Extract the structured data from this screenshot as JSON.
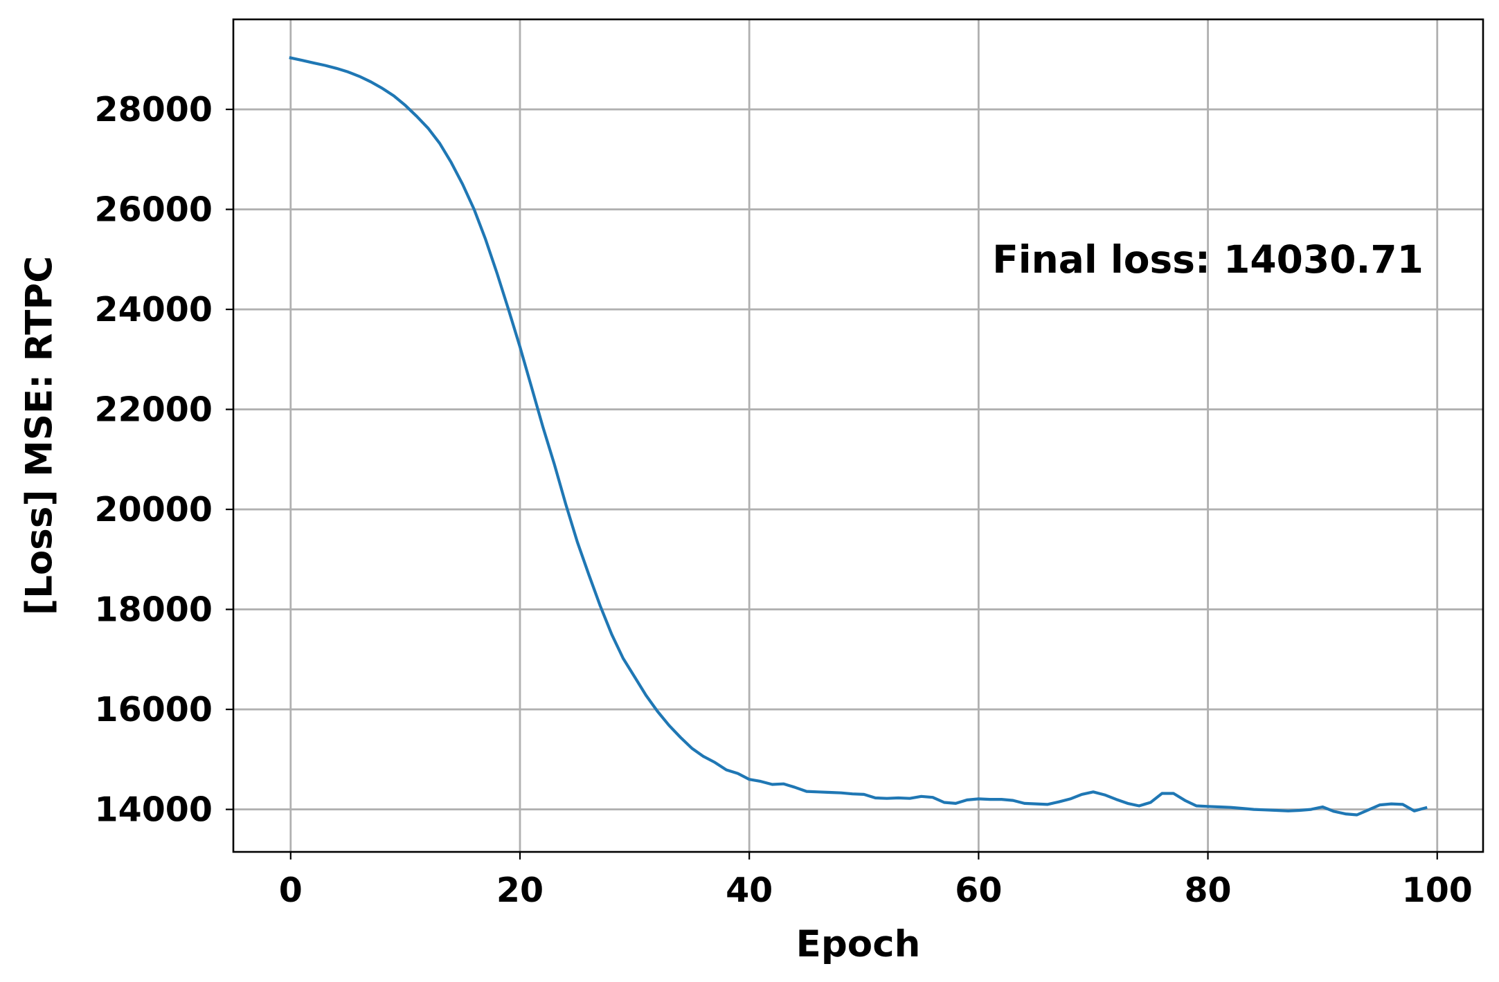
{
  "chart_data": {
    "type": "line",
    "title": "",
    "xlabel": "Epoch",
    "ylabel": "[Loss] MSE: RTPC",
    "xlim": [
      -5,
      104
    ],
    "ylim": [
      13150,
      29800
    ],
    "xticks": [
      0,
      20,
      40,
      60,
      80,
      100
    ],
    "yticks": [
      14000,
      16000,
      18000,
      20000,
      22000,
      24000,
      26000,
      28000
    ],
    "grid": true,
    "annotation": {
      "text": "Final loss: 14030.71",
      "x": 80,
      "y": 25000
    },
    "series": [
      {
        "color": "#1f77b4",
        "x": [
          0,
          1,
          2,
          3,
          4,
          5,
          6,
          7,
          8,
          9,
          10,
          11,
          12,
          13,
          14,
          15,
          16,
          17,
          18,
          19,
          20,
          21,
          22,
          23,
          24,
          25,
          26,
          27,
          28,
          29,
          30,
          31,
          32,
          33,
          34,
          35,
          36,
          37,
          38,
          39,
          40,
          41,
          42,
          43,
          44,
          45,
          46,
          47,
          48,
          49,
          50,
          51,
          52,
          53,
          54,
          55,
          56,
          57,
          58,
          59,
          60,
          61,
          62,
          63,
          64,
          65,
          66,
          67,
          68,
          69,
          70,
          71,
          72,
          73,
          74,
          75,
          76,
          77,
          78,
          79,
          80,
          81,
          82,
          83,
          84,
          85,
          86,
          87,
          88,
          89,
          90,
          91,
          92,
          93,
          94,
          95,
          96,
          97,
          98,
          99
        ],
        "y": [
          29030,
          28980,
          28930,
          28880,
          28820,
          28750,
          28660,
          28550,
          28420,
          28270,
          28080,
          27860,
          27620,
          27320,
          26940,
          26500,
          26000,
          25400,
          24720,
          24000,
          23250,
          22450,
          21650,
          20900,
          20100,
          19350,
          18700,
          18070,
          17500,
          17020,
          16650,
          16280,
          15960,
          15680,
          15440,
          15220,
          15060,
          14940,
          14790,
          14720,
          14600,
          14560,
          14500,
          14510,
          14440,
          14360,
          14350,
          14340,
          14330,
          14310,
          14300,
          14230,
          14220,
          14230,
          14220,
          14260,
          14240,
          14140,
          14120,
          14190,
          14210,
          14200,
          14200,
          14180,
          14120,
          14110,
          14100,
          14150,
          14210,
          14300,
          14350,
          14290,
          14200,
          14120,
          14070,
          14140,
          14320,
          14320,
          14180,
          14070,
          14060,
          14050,
          14040,
          14020,
          14000,
          13990,
          13980,
          13970,
          13980,
          14000,
          14050,
          13960,
          13910,
          13890,
          13990,
          14090,
          14110,
          14100,
          13970,
          14031
        ]
      }
    ]
  }
}
